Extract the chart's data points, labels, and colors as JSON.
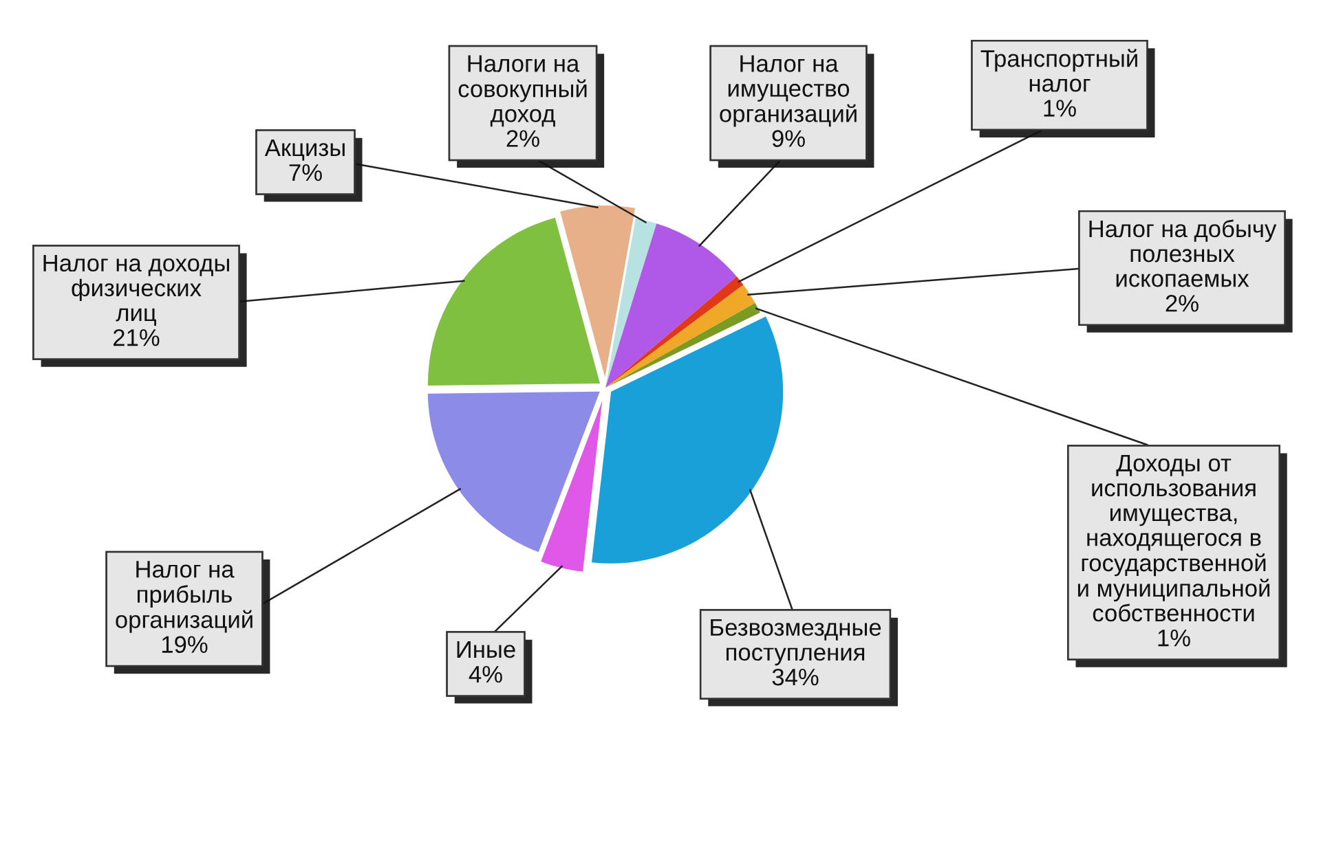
{
  "chart_data": {
    "type": "pie",
    "categories": [
      "Акцизы",
      "Налоги на\nсовокупный\nдоход",
      "Налог на\nимущество\nорганизаций",
      "Транспортный\nналог",
      "Налог на добычу\nполезных\nископаемых",
      "Доходы от\nиспользования\nимущества,\nнаходящегося в\nгосударственной\nи муниципальной\nсобственности",
      "Безвозмездные\nпоступления",
      "Иные",
      "Налог на\nприбыль\nорганизаций",
      "Налог на доходы\nфизических\nлиц"
    ],
    "values": [
      7,
      2,
      9,
      1,
      2,
      1,
      34,
      4,
      19,
      21
    ],
    "value_labels": [
      "7%",
      "2%",
      "9%",
      "1%",
      "2%",
      "1%",
      "34%",
      "4%",
      "19%",
      "21%"
    ],
    "colors": [
      "#e8b088",
      "#b8e2e2",
      "#b058e8",
      "#e03818",
      "#f0a828",
      "#7a9a22",
      "#1aa0d8",
      "#e058e8",
      "#8c8ce8",
      "#80c040"
    ]
  }
}
